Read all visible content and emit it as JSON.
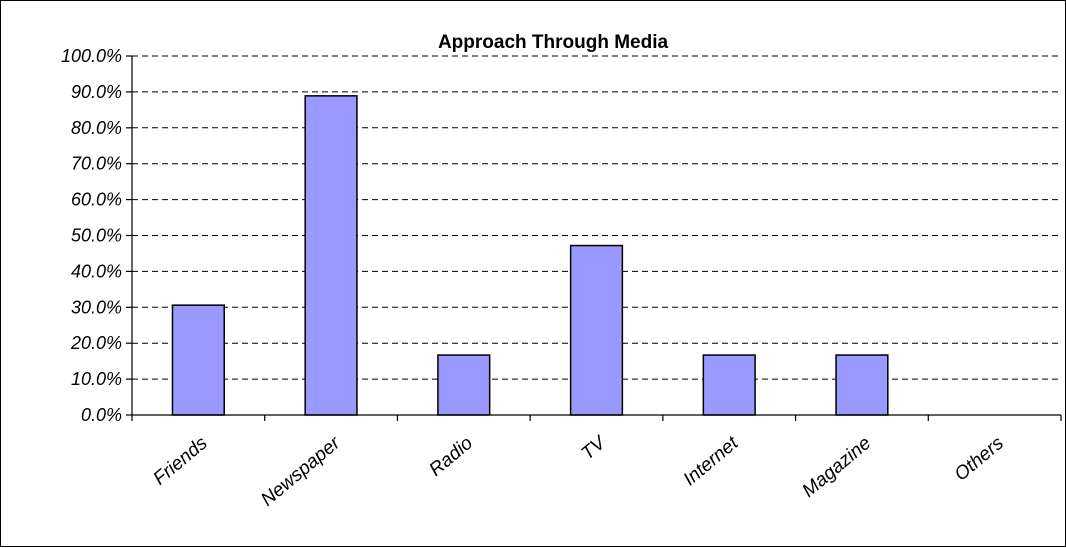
{
  "chart_data": {
    "type": "bar",
    "title": "Approach Through Media",
    "xlabel": "",
    "ylabel": "",
    "categories": [
      "Friends",
      "Newspaper",
      "Radio",
      "TV",
      "Internet",
      "Magazine",
      "Others"
    ],
    "values": [
      30.6,
      88.9,
      16.7,
      47.2,
      16.7,
      16.7,
      0.0
    ],
    "ylim": [
      0,
      100
    ],
    "yticks": [
      "0.0%",
      "10.0%",
      "20.0%",
      "30.0%",
      "40.0%",
      "50.0%",
      "60.0%",
      "70.0%",
      "80.0%",
      "90.0%",
      "100.0%"
    ],
    "grid": true,
    "legend": "none",
    "bar_color": "#9999ff"
  }
}
